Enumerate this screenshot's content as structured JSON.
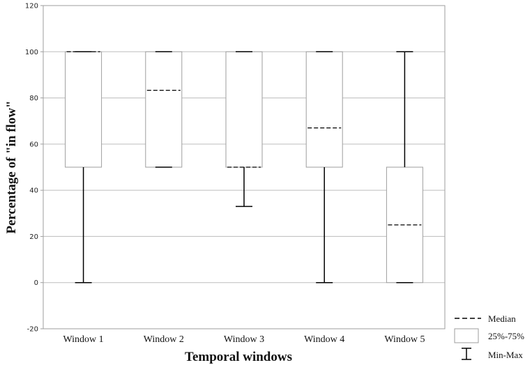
{
  "chart_data": {
    "type": "box",
    "xlabel": "Temporal windows",
    "ylabel": "Percentage of \"in flow\"",
    "ylim": [
      -20,
      120
    ],
    "yticks": [
      -20,
      0,
      20,
      40,
      60,
      80,
      100,
      120
    ],
    "grid": true,
    "categories": [
      "Window 1",
      "Window 2",
      "Window 3",
      "Window 4",
      "Window 5"
    ],
    "boxes": [
      {
        "min": 0,
        "q1": 50,
        "median": 100,
        "q3": 100,
        "max": 100
      },
      {
        "min": 50,
        "q1": 50,
        "median": 83.3,
        "q3": 100,
        "max": 100
      },
      {
        "min": 33,
        "q1": 50,
        "median": 50,
        "q3": 100,
        "max": 100
      },
      {
        "min": 0,
        "q1": 50,
        "median": 67,
        "q3": 100,
        "max": 100
      },
      {
        "min": 0,
        "q1": 0,
        "median": 25,
        "q3": 50,
        "max": 100
      }
    ],
    "legend": {
      "position": "bottom-right",
      "items": [
        {
          "symbol": "dashed-line",
          "label": "Median"
        },
        {
          "symbol": "box",
          "label": "25%-75%"
        },
        {
          "symbol": "whisker",
          "label": "Min-Max"
        }
      ]
    },
    "colors": {
      "grid": "#bdbdbd",
      "box_edge": "#9e9e9e",
      "whisker": "#000000",
      "median": "#000000"
    }
  }
}
